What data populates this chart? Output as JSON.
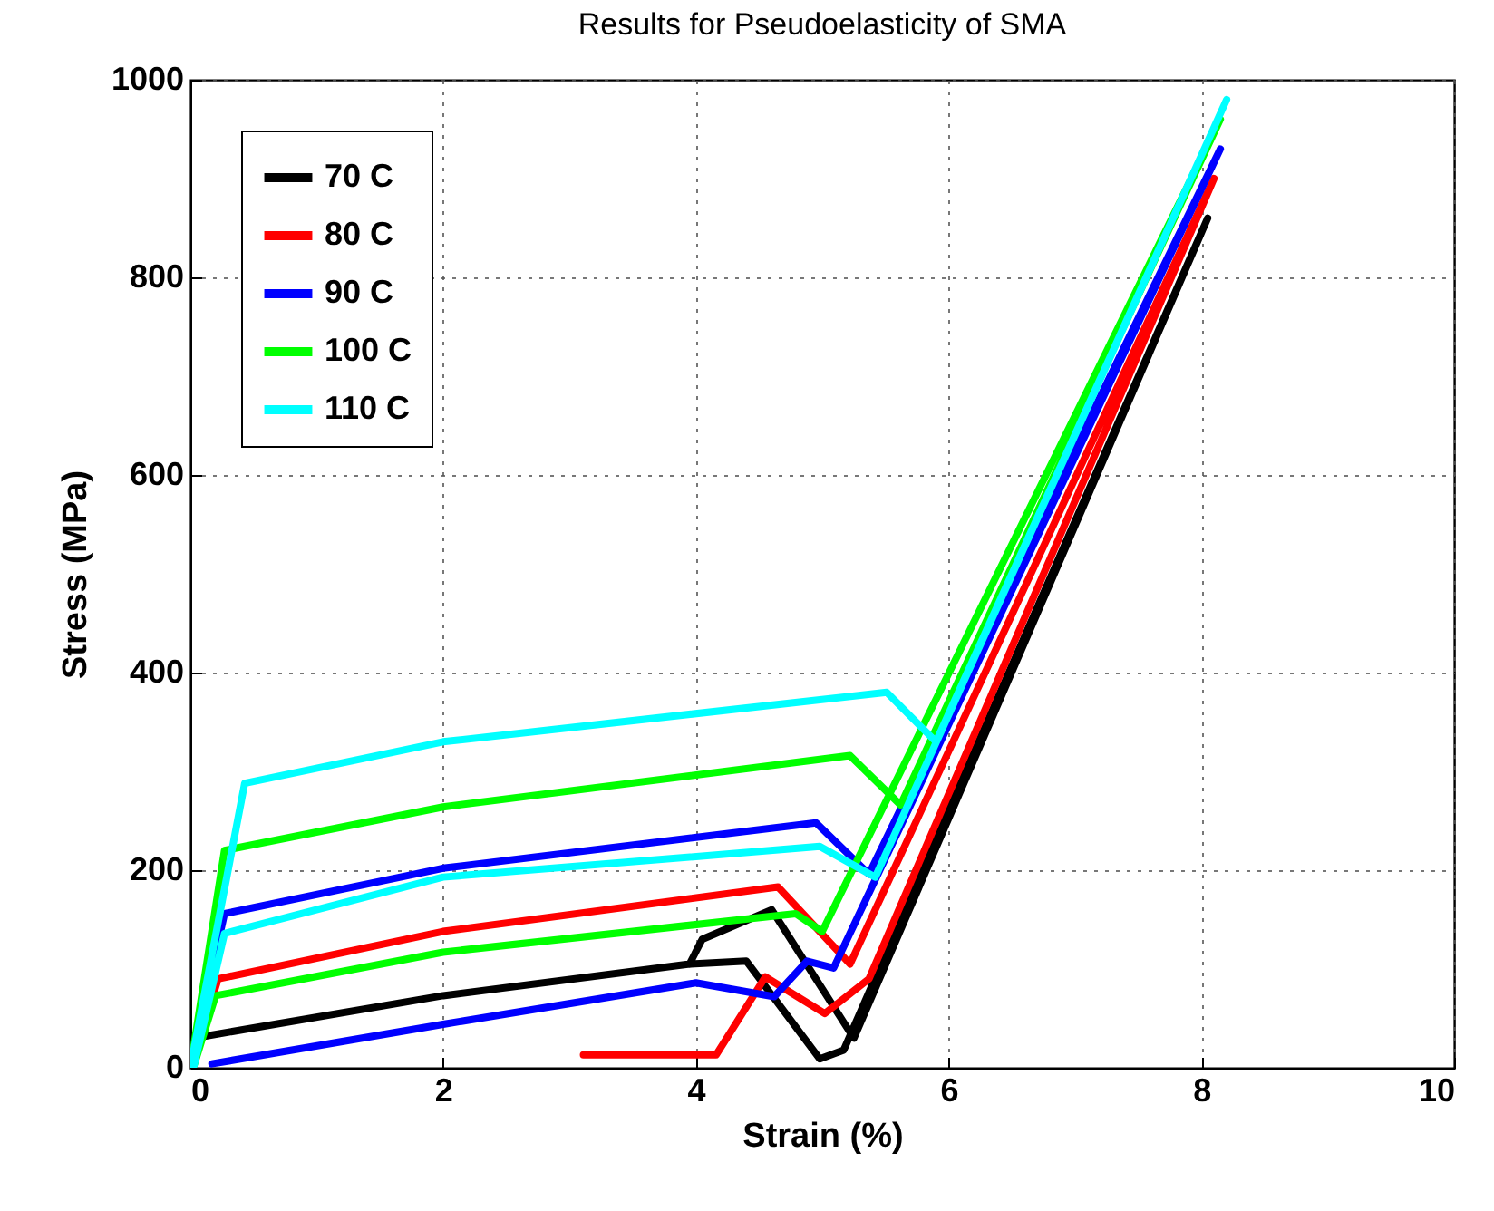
{
  "chart_data": {
    "type": "line",
    "title": "Results for Pseudoelasticity of SMA",
    "xlabel": "Strain (%)",
    "ylabel": "Stress (MPa)",
    "xlim": [
      0,
      10
    ],
    "xticks": [
      0,
      2,
      4,
      6,
      8,
      10
    ],
    "ylim": [
      0,
      1000
    ],
    "yticks": [
      0,
      200,
      400,
      600,
      800,
      1000
    ],
    "grid": true,
    "legend": "top left",
    "line_style": "solid",
    "marker": "none",
    "series": [
      {
        "name": "70 C",
        "color": "#000000",
        "x": [
          0,
          0.07,
          2,
          3.95,
          4.4,
          4.98,
          5.17,
          8.05,
          5.25,
          4.6,
          4.05,
          3.95
        ],
        "values": [
          0,
          31,
          73,
          105,
          108,
          9,
          18,
          860,
          30,
          160,
          130,
          105
        ]
      },
      {
        "name": "80 C",
        "color": "#ff0000",
        "x": [
          0,
          0.22,
          2,
          4.65,
          5.22,
          8.1,
          5.37,
          5.02,
          4.55,
          4.16,
          3.11
        ],
        "values": [
          0,
          90,
          138,
          183,
          105,
          900,
          90,
          55,
          92,
          13,
          13
        ]
      },
      {
        "name": "90 C",
        "color": "#0000ff",
        "x": [
          0,
          0.27,
          2,
          4.95,
          5.37,
          8.15,
          5.09,
          4.88,
          4.62,
          4,
          2,
          0.17
        ],
        "values": [
          0,
          156,
          202,
          248,
          196,
          930,
          101,
          108,
          72,
          86,
          44,
          4
        ]
      },
      {
        "name": "100 C",
        "color": "#00ff00",
        "x": [
          0,
          0.27,
          2,
          5.22,
          5.62,
          8.15,
          5.0,
          4.79,
          2,
          0.2,
          0.03
        ],
        "values": [
          0,
          220,
          264,
          316,
          266,
          960,
          138,
          156,
          117,
          73,
          3
        ]
      },
      {
        "name": "110 C",
        "color": "#00ffff",
        "x": [
          0,
          0.43,
          2,
          5.51,
          5.9,
          8.2,
          5.42,
          4.98,
          2,
          0.27,
          0.03
        ],
        "values": [
          0,
          288,
          330,
          380,
          330,
          980,
          193,
          224,
          193,
          136,
          3
        ]
      }
    ]
  }
}
